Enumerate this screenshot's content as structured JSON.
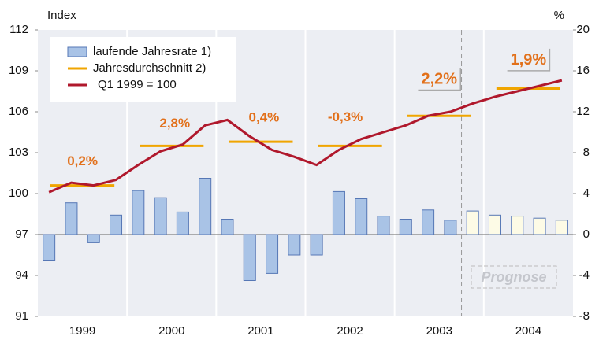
{
  "chart_data": {
    "type": "bar_line",
    "y_label": "Index",
    "y2_label": "%",
    "years": [
      "1999",
      "2000",
      "2001",
      "2002",
      "2003",
      "2004"
    ],
    "ylim": [
      91,
      112
    ],
    "yticks": [
      91,
      94,
      97,
      100,
      103,
      106,
      109,
      112
    ],
    "y2lim": [
      -8,
      20
    ],
    "y2ticks": [
      -8,
      -4,
      0,
      4,
      8,
      12,
      16,
      20
    ],
    "series": [
      {
        "name": "laufende Jahresrate 1)",
        "color": "#a9c3e6",
        "axis": "y2",
        "values": [
          -2.5,
          3.1,
          -0.8,
          1.9,
          4.3,
          3.6,
          2.2,
          5.5,
          1.5,
          -4.5,
          -3.8,
          -2.0,
          -2.0,
          4.2,
          3.5,
          1.8,
          1.5,
          2.4,
          1.4,
          2.3,
          1.9,
          1.8,
          1.6,
          1.4
        ]
      },
      {
        "name": "Jahresdurchschnitt 2)",
        "color": "#f0a500",
        "values": [
          100.6,
          103.5,
          103.8,
          103.5,
          105.7,
          107.7
        ]
      },
      {
        "name": "Q1 1999 = 100",
        "color": "#b0182c",
        "values": [
          100.1,
          100.8,
          100.6,
          101.0,
          102.1,
          103.1,
          103.6,
          105.0,
          105.4,
          104.2,
          103.2,
          102.7,
          102.1,
          103.2,
          104.0,
          104.5,
          105.0,
          105.7,
          106.0,
          106.6,
          107.1,
          107.5,
          107.9,
          108.3
        ]
      }
    ],
    "annotations": [
      "0,2%",
      "2,8%",
      "0,4%",
      "-0,3%",
      "2,2%",
      "1,9%"
    ],
    "forecast": {
      "label": "Prognose",
      "from": 19,
      "color": "#fdfbe6"
    }
  }
}
